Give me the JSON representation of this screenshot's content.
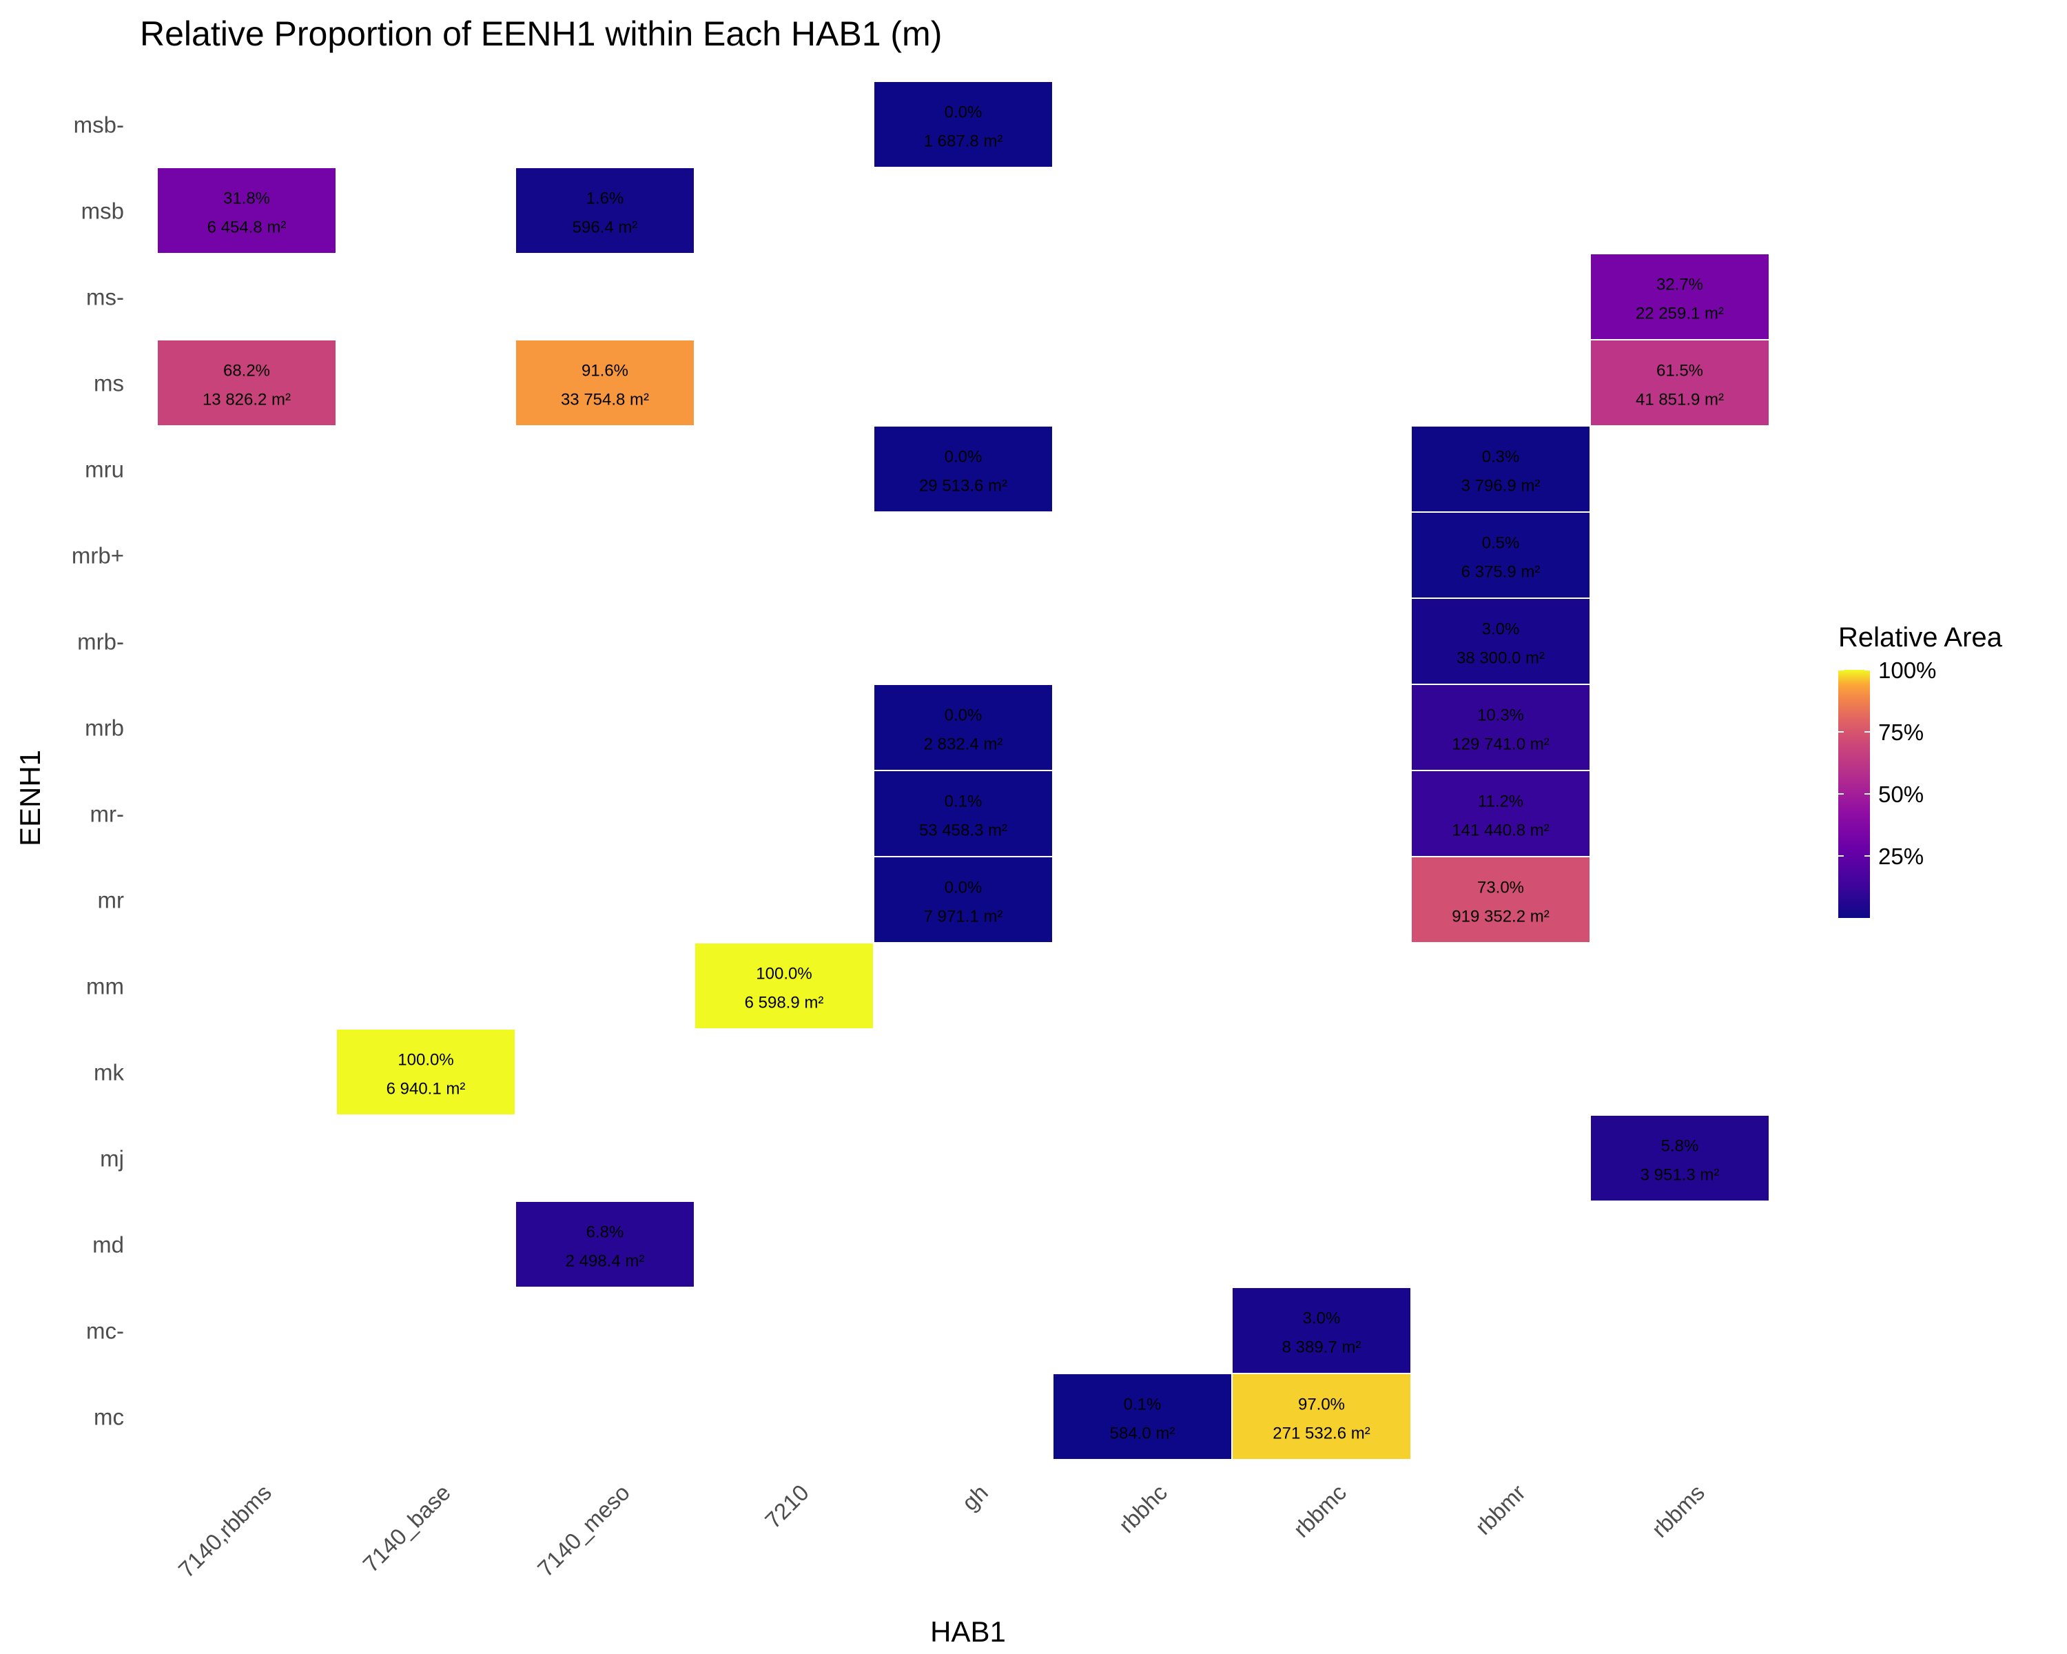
{
  "chart_data": {
    "type": "heatmap",
    "title": "Relative Proportion of EENH1 within Each HAB1 (m)",
    "xlabel": "HAB1",
    "ylabel": "EENH1",
    "x_categories": [
      "7140,rbbms",
      "7140_base",
      "7140_meso",
      "7210",
      "gh",
      "rbbhc",
      "rbbmc",
      "rbbmr",
      "rbbms"
    ],
    "y_categories": [
      "msb-",
      "msb",
      "ms-",
      "ms",
      "mru",
      "mrb+",
      "mrb-",
      "mrb",
      "mr-",
      "mr",
      "mm",
      "mk",
      "mj",
      "md",
      "mc-",
      "mc"
    ],
    "legend": {
      "title": "Relative Area",
      "ticks": [
        "100%",
        "75%",
        "50%",
        "25%"
      ],
      "position": "right"
    },
    "colorscale": "plasma",
    "grid": false,
    "cells": [
      {
        "x": "gh",
        "y": "msb-",
        "value": 0.0,
        "pct_label": "0.0%",
        "area_label": "1 687.8 m²"
      },
      {
        "x": "7140,rbbms",
        "y": "msb",
        "value": 31.8,
        "pct_label": "31.8%",
        "area_label": "6 454.8 m²"
      },
      {
        "x": "7140_meso",
        "y": "msb",
        "value": 1.6,
        "pct_label": "1.6%",
        "area_label": "596.4 m²"
      },
      {
        "x": "rbbms",
        "y": "ms-",
        "value": 32.7,
        "pct_label": "32.7%",
        "area_label": "22 259.1 m²"
      },
      {
        "x": "7140,rbbms",
        "y": "ms",
        "value": 68.2,
        "pct_label": "68.2%",
        "area_label": "13 826.2 m²"
      },
      {
        "x": "7140_meso",
        "y": "ms",
        "value": 91.6,
        "pct_label": "91.6%",
        "area_label": "33 754.8 m²"
      },
      {
        "x": "rbbms",
        "y": "ms",
        "value": 61.5,
        "pct_label": "61.5%",
        "area_label": "41 851.9 m²"
      },
      {
        "x": "gh",
        "y": "mru",
        "value": 0.0,
        "pct_label": "0.0%",
        "area_label": "29 513.6 m²"
      },
      {
        "x": "rbbmr",
        "y": "mru",
        "value": 0.3,
        "pct_label": "0.3%",
        "area_label": "3 796.9 m²"
      },
      {
        "x": "rbbmr",
        "y": "mrb+",
        "value": 0.5,
        "pct_label": "0.5%",
        "area_label": "6 375.9 m²"
      },
      {
        "x": "rbbmr",
        "y": "mrb-",
        "value": 3.0,
        "pct_label": "3.0%",
        "area_label": "38 300.0 m²"
      },
      {
        "x": "gh",
        "y": "mrb",
        "value": 0.0,
        "pct_label": "0.0%",
        "area_label": "2 832.4 m²"
      },
      {
        "x": "rbbmr",
        "y": "mrb",
        "value": 10.3,
        "pct_label": "10.3%",
        "area_label": "129 741.0 m²"
      },
      {
        "x": "gh",
        "y": "mr-",
        "value": 0.1,
        "pct_label": "0.1%",
        "area_label": "53 458.3 m²"
      },
      {
        "x": "rbbmr",
        "y": "mr-",
        "value": 11.2,
        "pct_label": "11.2%",
        "area_label": "141 440.8 m²"
      },
      {
        "x": "gh",
        "y": "mr",
        "value": 0.0,
        "pct_label": "0.0%",
        "area_label": "7 971.1 m²"
      },
      {
        "x": "rbbmr",
        "y": "mr",
        "value": 73.0,
        "pct_label": "73.0%",
        "area_label": "919 352.2 m²"
      },
      {
        "x": "7210",
        "y": "mm",
        "value": 100.0,
        "pct_label": "100.0%",
        "area_label": "6 598.9 m²"
      },
      {
        "x": "7140_base",
        "y": "mk",
        "value": 100.0,
        "pct_label": "100.0%",
        "area_label": "6 940.1 m²"
      },
      {
        "x": "rbbms",
        "y": "mj",
        "value": 5.8,
        "pct_label": "5.8%",
        "area_label": "3 951.3 m²"
      },
      {
        "x": "7140_meso",
        "y": "md",
        "value": 6.8,
        "pct_label": "6.8%",
        "area_label": "2 498.4 m²"
      },
      {
        "x": "rbbmc",
        "y": "mc-",
        "value": 3.0,
        "pct_label": "3.0%",
        "area_label": "8 389.7 m²"
      },
      {
        "x": "rbbhc",
        "y": "mc",
        "value": 0.1,
        "pct_label": "0.1%",
        "area_label": "584.0 m²"
      },
      {
        "x": "rbbmc",
        "y": "mc",
        "value": 97.0,
        "pct_label": "97.0%",
        "area_label": "271 532.6 m²"
      }
    ]
  }
}
